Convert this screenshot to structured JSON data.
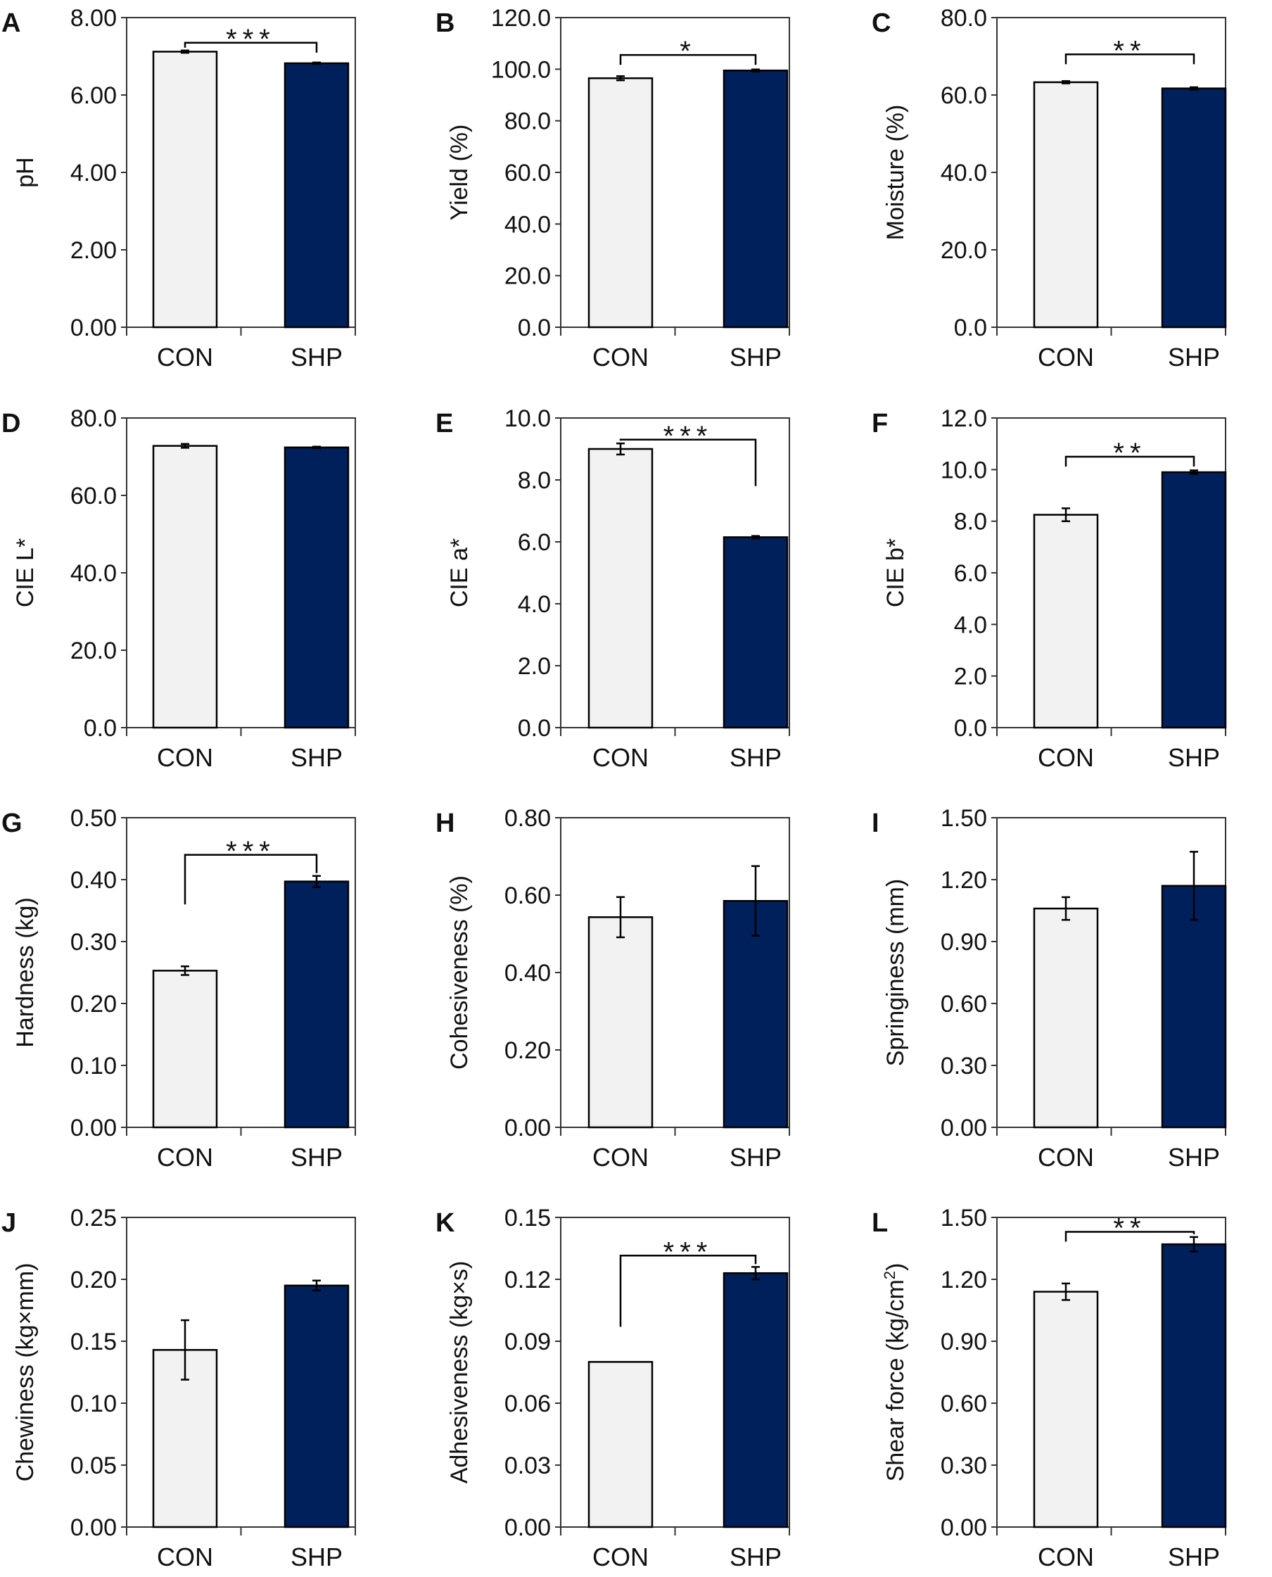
{
  "figure": {
    "groups": [
      "CON",
      "SHP"
    ],
    "colors": {
      "con_fill": "#f2f2f2",
      "shp_fill": "#00205b",
      "stroke": "#000000",
      "axis": "#333333"
    }
  },
  "chart_data": [
    {
      "type": "bar",
      "panel_label": "A",
      "ylabel": "pH",
      "ylabel_sup": "",
      "ylabel_tail": "",
      "ylim": [
        0,
        8
      ],
      "yticks": [
        "0.00",
        "2.00",
        "4.00",
        "6.00",
        "8.00"
      ],
      "categories": [
        "CON",
        "SHP"
      ],
      "values": [
        7.12,
        6.82
      ],
      "errors": [
        0.03,
        0.02
      ],
      "significance": {
        "label": "***",
        "bracket": "flat",
        "y": 7.35
      }
    },
    {
      "type": "bar",
      "panel_label": "B",
      "ylabel": "Yield  (%)",
      "ylabel_sup": "",
      "ylabel_tail": "",
      "ylim": [
        0,
        120
      ],
      "yticks": [
        "0.0",
        "20.0",
        "40.0",
        "60.0",
        "80.0",
        "100.0",
        "120.0"
      ],
      "categories": [
        "CON",
        "SHP"
      ],
      "values": [
        96.5,
        99.5
      ],
      "errors": [
        0.8,
        0.4
      ],
      "significance": {
        "label": "*",
        "bracket": "flat",
        "y": 105.5
      }
    },
    {
      "type": "bar",
      "panel_label": "C",
      "ylabel": "Moisture  (%)",
      "ylabel_sup": "",
      "ylabel_tail": "",
      "ylim": [
        0,
        80
      ],
      "yticks": [
        "0.0",
        "20.0",
        "40.0",
        "60.0",
        "80.0"
      ],
      "categories": [
        "CON",
        "SHP"
      ],
      "values": [
        63.3,
        61.7
      ],
      "errors": [
        0.3,
        0.3
      ],
      "significance": {
        "label": "**",
        "bracket": "flat",
        "y": 70.5
      }
    },
    {
      "type": "bar",
      "panel_label": "D",
      "ylabel": "CIE L*",
      "ylabel_sup": "",
      "ylabel_tail": "",
      "ylim": [
        0,
        80
      ],
      "yticks": [
        "0.0",
        "20.0",
        "40.0",
        "60.0",
        "80.0"
      ],
      "categories": [
        "CON",
        "SHP"
      ],
      "values": [
        72.8,
        72.4
      ],
      "errors": [
        0.5,
        0.2
      ],
      "significance": null
    },
    {
      "type": "bar",
      "panel_label": "E",
      "ylabel": "CIE a*",
      "ylabel_sup": "",
      "ylabel_tail": "",
      "ylim": [
        0,
        10
      ],
      "yticks": [
        "0.0",
        "2.0",
        "4.0",
        "6.0",
        "8.0",
        "10.0"
      ],
      "categories": [
        "CON",
        "SHP"
      ],
      "values": [
        9.0,
        6.15
      ],
      "errors": [
        0.18,
        0.04
      ],
      "significance": {
        "label": "***",
        "bracket": "drop-right",
        "y": 9.3,
        "drop_to": 7.8
      }
    },
    {
      "type": "bar",
      "panel_label": "F",
      "ylabel": "CIE b*",
      "ylabel_sup": "",
      "ylabel_tail": "",
      "ylim": [
        0,
        12
      ],
      "yticks": [
        "0.0",
        "2.0",
        "4.0",
        "6.0",
        "8.0",
        "10.0",
        "12.0"
      ],
      "categories": [
        "CON",
        "SHP"
      ],
      "values": [
        8.25,
        9.9
      ],
      "errors": [
        0.25,
        0.07
      ],
      "significance": {
        "label": "**",
        "bracket": "flat",
        "y": 10.5
      }
    },
    {
      "type": "bar",
      "panel_label": "G",
      "ylabel": "Hardness  (kg)",
      "ylabel_sup": "",
      "ylabel_tail": "",
      "ylim": [
        0,
        0.5
      ],
      "yticks": [
        "0.00",
        "0.10",
        "0.20",
        "0.30",
        "0.40",
        "0.50"
      ],
      "categories": [
        "CON",
        "SHP"
      ],
      "values": [
        0.253,
        0.397
      ],
      "errors": [
        0.007,
        0.009
      ],
      "significance": {
        "label": "***",
        "bracket": "drop-left",
        "y": 0.44,
        "drop_to": 0.36
      }
    },
    {
      "type": "bar",
      "panel_label": "H",
      "ylabel": "Cohesiveness  (%)",
      "ylabel_sup": "",
      "ylabel_tail": "",
      "ylim": [
        0,
        0.8
      ],
      "yticks": [
        "0.00",
        "0.20",
        "0.40",
        "0.60",
        "0.80"
      ],
      "categories": [
        "CON",
        "SHP"
      ],
      "values": [
        0.543,
        0.585
      ],
      "errors": [
        0.052,
        0.09
      ],
      "significance": null
    },
    {
      "type": "bar",
      "panel_label": "I",
      "ylabel": "Springiness  (mm)",
      "ylabel_sup": "",
      "ylabel_tail": "",
      "ylim": [
        0,
        1.5
      ],
      "yticks": [
        "0.00",
        "0.30",
        "0.60",
        "0.90",
        "1.20",
        "1.50"
      ],
      "categories": [
        "CON",
        "SHP"
      ],
      "values": [
        1.06,
        1.17
      ],
      "errors": [
        0.055,
        0.165
      ],
      "significance": null
    },
    {
      "type": "bar",
      "panel_label": "J",
      "ylabel": "Chewiness  (kg×mm)",
      "ylabel_sup": "",
      "ylabel_tail": "",
      "ylim": [
        0,
        0.25
      ],
      "yticks": [
        "0.00",
        "0.05",
        "0.10",
        "0.15",
        "0.20",
        "0.25"
      ],
      "categories": [
        "CON",
        "SHP"
      ],
      "values": [
        0.143,
        0.195
      ],
      "errors": [
        0.024,
        0.004
      ],
      "significance": null
    },
    {
      "type": "bar",
      "panel_label": "K",
      "ylabel": "Adhesiveness  (kg×s)",
      "ylabel_sup": "",
      "ylabel_tail": "",
      "ylim": [
        0,
        0.15
      ],
      "yticks": [
        "0.00",
        "0.03",
        "0.06",
        "0.09",
        "0.12",
        "0.15"
      ],
      "categories": [
        "CON",
        "SHP"
      ],
      "values": [
        0.08,
        0.123
      ],
      "errors": [
        0,
        0.003
      ],
      "significance": {
        "label": "***",
        "bracket": "drop-left",
        "y": 0.1315,
        "drop_to": 0.097
      }
    },
    {
      "type": "bar",
      "panel_label": "L",
      "ylabel": "Shear force  (kg/cm",
      "ylabel_sup": "2",
      "ylabel_tail": ")",
      "ylim": [
        0,
        1.5
      ],
      "yticks": [
        "0.00",
        "0.30",
        "0.60",
        "0.90",
        "1.20",
        "1.50"
      ],
      "categories": [
        "CON",
        "SHP"
      ],
      "values": [
        1.14,
        1.37
      ],
      "errors": [
        0.04,
        0.035
      ],
      "significance": {
        "label": "**",
        "bracket": "flat",
        "y": 1.43
      }
    }
  ]
}
